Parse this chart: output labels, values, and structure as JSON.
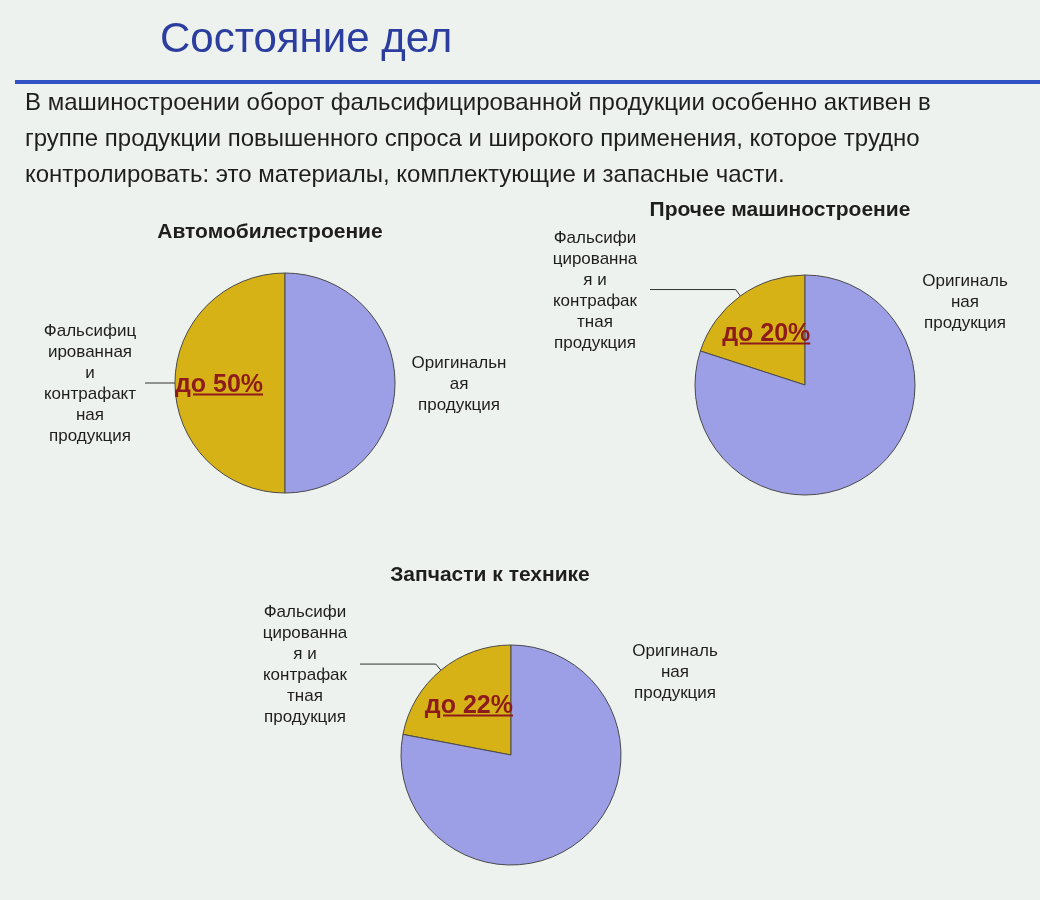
{
  "chart_data": [
    {
      "type": "other",
      "title": "Состояние дел",
      "subtitle": "В машиностроении оборот фальсифицированной продукции особенно активен в группе продукции повышенного спроса и широкого применения, которое трудно контролировать: это материалы, комплектующие и запасные части."
    },
    {
      "type": "pie",
      "title": "Автомобилестроение",
      "categories": [
        "Фальсифиц\nированная\nи\nконтрафакт\nная\nпродукция",
        "Оригинальн\nая\nпродукция"
      ],
      "values": [
        50,
        50
      ],
      "colors": [
        "#d6b216",
        "#9c9ee6"
      ],
      "value_labels": [
        "до 50%",
        null
      ]
    },
    {
      "type": "pie",
      "title": "Прочее машиностроение",
      "categories": [
        "Фальсифи\nцированна\nя и\nконтрафак\nтная\nпродукция",
        "Оригиналь\nная\nпродукция"
      ],
      "values": [
        20,
        80
      ],
      "colors": [
        "#d6b216",
        "#9c9ee6"
      ],
      "value_labels": [
        "до 20%",
        null
      ]
    },
    {
      "type": "pie",
      "title": "Запчасти к технике",
      "categories": [
        "Фальсифи\nцированна\nя и\nконтрафак\nтная\nпродукция",
        "Оригиналь\nная\nпродукция"
      ],
      "values": [
        22,
        78
      ],
      "colors": [
        "#d6b216",
        "#9c9ee6"
      ],
      "value_labels": [
        "до 22%",
        null
      ]
    }
  ]
}
